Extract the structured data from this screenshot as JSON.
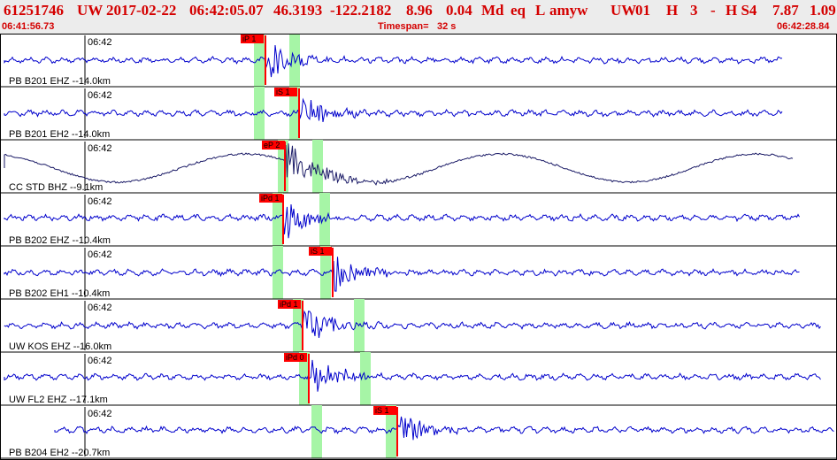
{
  "header": {
    "event_id": "61251746",
    "network": "UW",
    "origin_date": "2017-02-22",
    "origin_time": "06:42:05.07",
    "latitude": "46.3193",
    "longitude": "-122.2182",
    "depth": "8.96",
    "magnitude": "0.04",
    "mag_type": "Md",
    "event_type": "eq",
    "review": "L",
    "analyst": "amyw",
    "station_net": "UW",
    "station_num": "01",
    "h_label": "H",
    "count": "3",
    "dash": "-",
    "h_code": "H S4",
    "value_1": "7.87",
    "value_2": "1.09"
  },
  "timebar": {
    "start_time": "06:41:56.73",
    "timespan_label": "Timespan=",
    "timespan_value": "32 s",
    "end_time": "06:42:28.84"
  },
  "colors": {
    "header_bg": "#ececec",
    "header_text": "#d40000",
    "trace_blue": "#0000cc",
    "trace_dark": "#1a1a66",
    "pick_red": "#ff0000",
    "window_green": "#a6f5a6",
    "frame": "#000000"
  },
  "traces": [
    {
      "minute_label": "06:42",
      "station": "PB B201 EHZ --",
      "distance": "14.0km",
      "pick_label": "iP 1",
      "color": "blue"
    },
    {
      "minute_label": "06:42",
      "station": "PB B201 EH2 --",
      "distance": "14.0km",
      "pick_label": "iS 1",
      "color": "blue"
    },
    {
      "minute_label": "06:42",
      "station": "CC STD BHZ --",
      "distance": "9.1km",
      "pick_label": "eP 2",
      "color": "dark"
    },
    {
      "minute_label": "06:42",
      "station": "PB B202 EHZ --",
      "distance": "10.4km",
      "pick_label": "iPd 1",
      "color": "blue"
    },
    {
      "minute_label": "06:42",
      "station": "PB B202 EH1 --",
      "distance": "10.4km",
      "pick_label": "iS 1",
      "color": "blue"
    },
    {
      "minute_label": "06:42",
      "station": "UW KOS EHZ --",
      "distance": "16.0km",
      "pick_label": "iPd 1",
      "color": "blue"
    },
    {
      "minute_label": "06:42",
      "station": "UW FL2 EHZ --",
      "distance": "17.1km",
      "pick_label": "iPd 0",
      "color": "blue"
    },
    {
      "minute_label": "06:42",
      "station": "PB B204 EH2 --",
      "distance": "20.7km",
      "pick_label": "iS 1",
      "color": "blue"
    }
  ]
}
